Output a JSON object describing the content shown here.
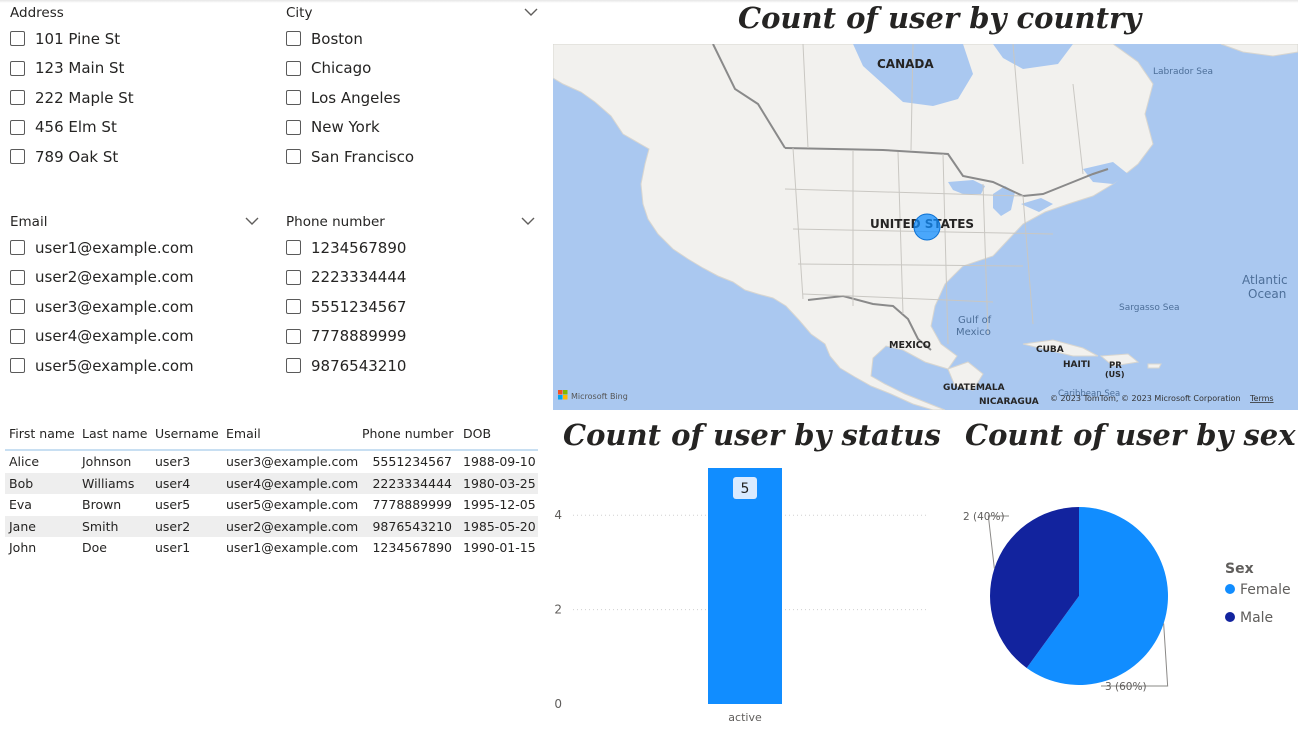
{
  "slicers": {
    "address": {
      "title": "Address",
      "items": [
        "101 Pine St",
        "123 Main St",
        "222 Maple St",
        "456 Elm St",
        "789 Oak St"
      ]
    },
    "city": {
      "title": "City",
      "items": [
        "Boston",
        "Chicago",
        "Los Angeles",
        "New York",
        "San Francisco"
      ]
    },
    "email": {
      "title": "Email",
      "items": [
        "user1@example.com",
        "user2@example.com",
        "user3@example.com",
        "user4@example.com",
        "user5@example.com"
      ]
    },
    "phone": {
      "title": "Phone number",
      "items": [
        "1234567890",
        "2223334444",
        "5551234567",
        "7778889999",
        "9876543210"
      ]
    }
  },
  "table": {
    "columns": [
      "First name",
      "Last name",
      "Username",
      "Email",
      "Phone number",
      "DOB"
    ],
    "rows": [
      [
        "Alice",
        "Johnson",
        "user3",
        "user3@example.com",
        "5551234567",
        "1988-09-10"
      ],
      [
        "Bob",
        "Williams",
        "user4",
        "user4@example.com",
        "2223334444",
        "1980-03-25"
      ],
      [
        "Eva",
        "Brown",
        "user5",
        "user5@example.com",
        "7778889999",
        "1995-12-05"
      ],
      [
        "Jane",
        "Smith",
        "user2",
        "user2@example.com",
        "9876543210",
        "1985-05-20"
      ],
      [
        "John",
        "Doe",
        "user1",
        "user1@example.com",
        "1234567890",
        "1990-01-15"
      ]
    ]
  },
  "map_visual": {
    "title": "Count of user by country",
    "labels": {
      "canada": "CANADA",
      "united_states": "UNITED STATES",
      "mexico": "MEXICO",
      "cuba": "CUBA",
      "haiti": "HAITI",
      "pr": "PR",
      "pr_us": "(US)",
      "guatemala": "GUATEMALA",
      "nicaragua": "NICARAGUA",
      "labrador_sea": "Labrador Sea",
      "atlantic_1": "Atlantic",
      "atlantic_2": "Ocean",
      "sargasso_sea": "Sargasso Sea",
      "gulf_1": "Gulf of",
      "gulf_2": "Mexico",
      "caribbean_sea": "Caribbean Sea"
    },
    "attribution": "© 2023 TomTom, © 2023 Microsoft Corporation",
    "terms": "Terms",
    "bing": "Microsoft Bing"
  },
  "chart_data": [
    {
      "type": "bar",
      "title": "Count of user by status",
      "categories": [
        "active"
      ],
      "values": [
        5
      ],
      "data_labels": [
        "5"
      ],
      "ylim": [
        0,
        5
      ],
      "yticks": [
        "0",
        "2",
        "4"
      ],
      "grid": true,
      "color": "#118DFF"
    },
    {
      "type": "pie",
      "title": "Count of user by sex",
      "categories": [
        "Female",
        "Male"
      ],
      "values": [
        3,
        2
      ],
      "data_labels": [
        "3 (60%)",
        "2 (40%)"
      ],
      "legend_title": "Sex",
      "legend_position": "right",
      "colors": [
        "#118DFF",
        "#12239E"
      ]
    }
  ]
}
